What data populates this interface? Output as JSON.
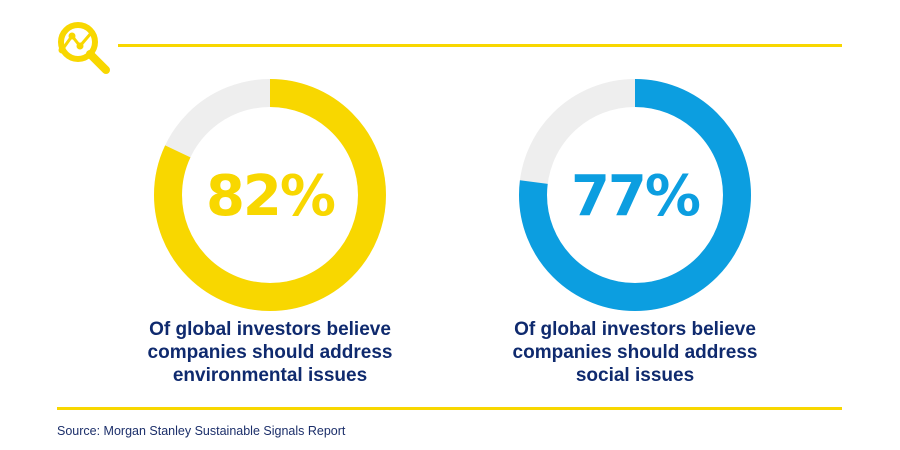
{
  "colors": {
    "accent_yellow": "#f8d700",
    "accent_blue": "#0c9ee0",
    "track_grey": "#eeeeee",
    "text_navy": "#0f2a6e"
  },
  "header": {
    "icon": "search-analytics-icon"
  },
  "chart_data": [
    {
      "type": "pie",
      "variant": "donut",
      "value": 82,
      "max": 100,
      "label": "82%",
      "color": "#f8d700",
      "caption_lines": [
        "Of global investors believe",
        "companies should address",
        "environmental issues"
      ]
    },
    {
      "type": "pie",
      "variant": "donut",
      "value": 77,
      "max": 100,
      "label": "77%",
      "color": "#0c9ee0",
      "caption_lines": [
        "Of global investors believe",
        "companies should address",
        "social issues"
      ]
    }
  ],
  "footer": {
    "source": "Source: Morgan Stanley Sustainable Signals Report"
  }
}
